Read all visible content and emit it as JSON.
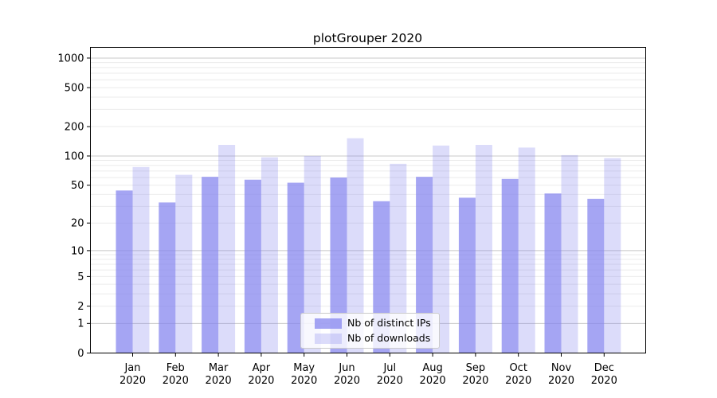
{
  "title": "plotGrouper 2020",
  "chart_data": {
    "type": "bar",
    "title": "plotGrouper 2020",
    "categories": [
      "Jan",
      "Feb",
      "Mar",
      "Apr",
      "May",
      "Jun",
      "Jul",
      "Aug",
      "Sep",
      "Oct",
      "Nov",
      "Dec"
    ],
    "year_label": "2020",
    "series": [
      {
        "name": "Nb of distinct IPs",
        "color": "rgba(130,130,238,0.72)",
        "values": [
          44,
          33,
          61,
          57,
          53,
          60,
          34,
          61,
          37,
          58,
          41,
          36
        ]
      },
      {
        "name": "Nb of downloads",
        "color": "rgba(130,130,238,0.28)",
        "values": [
          77,
          64,
          130,
          97,
          100,
          152,
          83,
          128,
          130,
          122,
          102,
          95
        ]
      }
    ],
    "y_ticks": [
      0,
      1,
      2,
      5,
      10,
      20,
      50,
      100,
      200,
      500,
      1000
    ],
    "y_scale": "log1p",
    "ylim": [
      0,
      1300
    ],
    "grid": true,
    "legend_position": "lower center",
    "xlabel": "",
    "ylabel": ""
  },
  "colors": {
    "bar_base": "#8282ee",
    "bar_dark": "rgba(130,130,238,0.72)",
    "bar_light": "rgba(130,130,238,0.28)",
    "grid_major": "#c8c8c8",
    "grid_minor": "#ebebeb",
    "spine": "#000000",
    "text": "#000000",
    "legend_border": "#cbcbcb",
    "background": "#ffffff"
  }
}
